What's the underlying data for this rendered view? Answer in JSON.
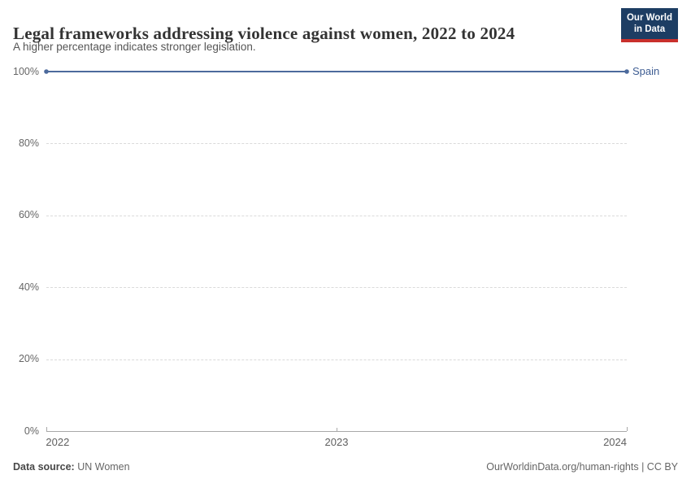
{
  "header": {
    "title": "Legal frameworks addressing violence against women, 2022 to 2024",
    "subtitle": "A higher percentage indicates stronger legislation.",
    "logo": {
      "line1": "Our World",
      "line2": "in Data"
    }
  },
  "chart_data": {
    "type": "line",
    "title": "Legal frameworks addressing violence against women, 2022 to 2024",
    "x": [
      2022,
      2023,
      2024
    ],
    "xticks": [
      2022,
      2023,
      2024
    ],
    "xlim": [
      2022,
      2024
    ],
    "series": [
      {
        "name": "Spain",
        "values": [
          100,
          100,
          100
        ],
        "color": "#4C6A9C",
        "label_color": "#3d5c92"
      }
    ],
    "ylim": [
      0,
      100
    ],
    "yticks": [
      0,
      20,
      40,
      60,
      80,
      100
    ],
    "ytick_suffix": "%",
    "grid": "horizontal-dashed",
    "legend_position": "end-of-line-label"
  },
  "footer": {
    "datasource_label": "Data source:",
    "datasource_value": "UN Women",
    "attribution": "OurWorldinData.org/human-rights | CC BY"
  },
  "colors": {
    "line": "#4C6A9C",
    "entity_label": "#3d5c92",
    "gridline": "#dadada",
    "axis": "#a8a8a8",
    "logo_navy": "#1d3d63",
    "logo_red": "#c9302c"
  }
}
